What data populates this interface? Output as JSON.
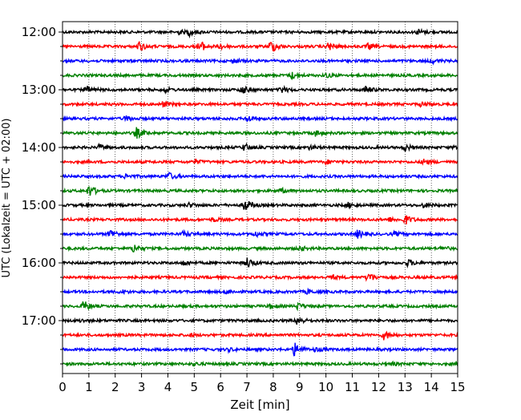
{
  "chart_data": {
    "type": "line",
    "chart_kind": "helicorder",
    "xlabel": "Zeit  [min]",
    "ylabel": "UTC (Lokalzeit = UTC + 02:00)",
    "xlim": [
      0,
      15
    ],
    "x_ticks": [
      "0",
      "1",
      "2",
      "3",
      "4",
      "5",
      "6",
      "7",
      "8",
      "9",
      "10",
      "11",
      "12",
      "13",
      "14",
      "15"
    ],
    "y_tick_labels": [
      "12:00",
      "13:00",
      "14:00",
      "15:00",
      "16:00",
      "17:00"
    ],
    "trace_colors": [
      "#000000",
      "#ff0000",
      "#0000ff",
      "#008000"
    ],
    "x_grid": "dotted vertical lines at each minute",
    "rows": [
      {
        "time": "12:00",
        "color": "#000000",
        "events": [
          [
            4.8,
            0.5
          ],
          [
            13.5,
            0.4
          ],
          [
            4.4,
            0.3
          ]
        ]
      },
      {
        "time": "12:15",
        "color": "#ff0000",
        "events": [
          [
            5.2,
            0.9
          ],
          [
            7.9,
            1.0
          ],
          [
            2.9,
            0.7
          ],
          [
            10.1,
            0.6
          ],
          [
            11.6,
            0.4
          ],
          [
            6.0,
            0.4
          ]
        ]
      },
      {
        "time": "12:30",
        "color": "#0000ff",
        "events": [
          [
            6.5,
            0.3
          ],
          [
            14.0,
            0.3
          ]
        ]
      },
      {
        "time": "12:45",
        "color": "#008000",
        "events": [
          [
            8.7,
            0.5
          ],
          [
            10.0,
            0.3
          ]
        ]
      },
      {
        "time": "13:00",
        "color": "#000000",
        "events": [
          [
            0.9,
            0.5
          ],
          [
            6.8,
            0.6
          ],
          [
            8.3,
            0.5
          ],
          [
            11.5,
            0.5
          ],
          [
            3.9,
            0.3
          ]
        ]
      },
      {
        "time": "13:15",
        "color": "#ff0000",
        "events": [
          [
            3.8,
            0.4
          ],
          [
            13.6,
            0.3
          ]
        ]
      },
      {
        "time": "13:30",
        "color": "#0000ff",
        "events": [
          [
            2.4,
            0.4
          ],
          [
            7.0,
            0.5
          ]
        ]
      },
      {
        "time": "13:45",
        "color": "#008000",
        "events": [
          [
            2.8,
            0.8
          ],
          [
            9.6,
            0.4
          ]
        ]
      },
      {
        "time": "14:00",
        "color": "#000000",
        "events": [
          [
            1.4,
            0.4
          ],
          [
            6.9,
            0.6
          ],
          [
            13.0,
            0.5
          ],
          [
            14.9,
            0.3
          ],
          [
            9.4,
            0.3
          ]
        ]
      },
      {
        "time": "14:15",
        "color": "#ff0000",
        "events": [
          [
            13.7,
            0.5
          ],
          [
            10.0,
            0.3
          ],
          [
            5.0,
            0.3
          ]
        ]
      },
      {
        "time": "14:30",
        "color": "#0000ff",
        "events": [
          [
            4.0,
            0.6
          ],
          [
            2.4,
            0.3
          ]
        ]
      },
      {
        "time": "14:45",
        "color": "#008000",
        "events": [
          [
            1.0,
            0.9
          ],
          [
            8.3,
            0.3
          ]
        ]
      },
      {
        "time": "15:00",
        "color": "#000000",
        "events": [
          [
            6.9,
            1.0
          ],
          [
            10.8,
            0.4
          ],
          [
            4.8,
            0.3
          ],
          [
            13.7,
            0.3
          ]
        ]
      },
      {
        "time": "15:15",
        "color": "#ff0000",
        "events": [
          [
            13.0,
            0.7
          ],
          [
            5.7,
            0.3
          ],
          [
            12.4,
            0.3
          ]
        ]
      },
      {
        "time": "15:30",
        "color": "#0000ff",
        "events": [
          [
            1.8,
            0.7
          ],
          [
            4.6,
            0.4
          ],
          [
            7.3,
            0.4
          ],
          [
            11.2,
            0.6
          ],
          [
            12.6,
            0.3
          ]
        ]
      },
      {
        "time": "15:45",
        "color": "#008000",
        "events": [
          [
            2.7,
            0.7
          ],
          [
            9.0,
            0.3
          ],
          [
            14.4,
            0.3
          ]
        ]
      },
      {
        "time": "16:00",
        "color": "#000000",
        "events": [
          [
            7.0,
            0.8
          ],
          [
            13.1,
            0.5
          ],
          [
            4.6,
            0.3
          ]
        ]
      },
      {
        "time": "16:15",
        "color": "#ff0000",
        "events": [
          [
            11.6,
            0.8
          ],
          [
            10.2,
            0.3
          ]
        ]
      },
      {
        "time": "16:30",
        "color": "#0000ff",
        "events": [
          [
            2.2,
            0.3
          ],
          [
            6.2,
            0.3
          ],
          [
            9.3,
            0.3
          ]
        ]
      },
      {
        "time": "16:45",
        "color": "#008000",
        "events": [
          [
            0.8,
            0.8
          ],
          [
            8.9,
            0.5
          ],
          [
            7.9,
            0.3
          ]
        ]
      },
      {
        "time": "17:00",
        "color": "#000000",
        "events": [
          [
            8.9,
            0.6
          ],
          [
            0.7,
            0.2
          ]
        ]
      },
      {
        "time": "17:15",
        "color": "#ff0000",
        "events": [
          [
            12.2,
            0.7
          ],
          [
            4.8,
            0.2
          ]
        ]
      },
      {
        "time": "17:30",
        "color": "#0000ff",
        "events": [
          [
            8.8,
            1.0
          ],
          [
            9.6,
            0.3
          ],
          [
            6.3,
            0.2
          ]
        ]
      },
      {
        "time": "17:45",
        "color": "#008000",
        "events": [
          [
            5.0,
            0.2
          ],
          [
            12.5,
            0.2
          ]
        ]
      }
    ]
  }
}
